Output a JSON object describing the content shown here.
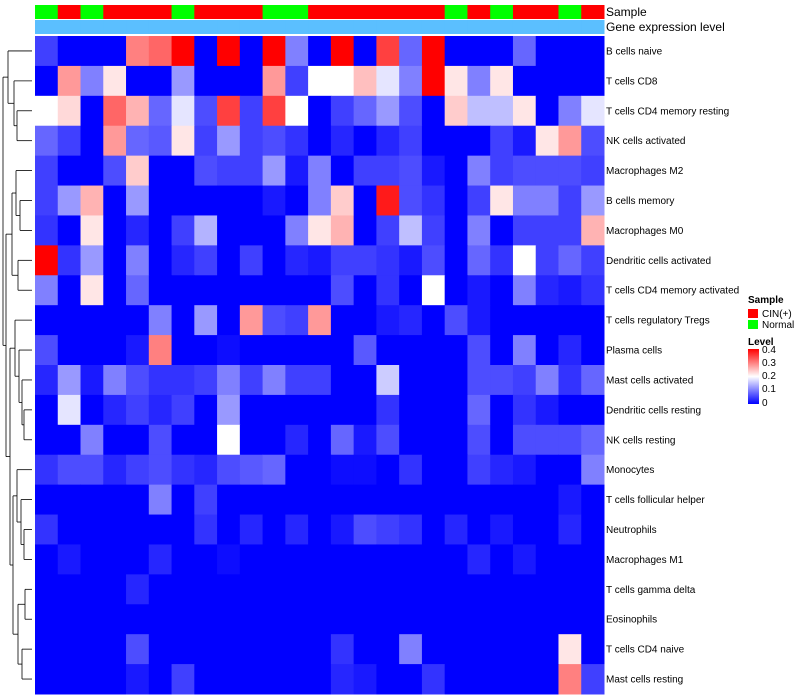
{
  "chart_data": {
    "type": "heatmap",
    "title": "",
    "annotation_titles": {
      "sample": "Sample",
      "level": "Gene expression level"
    },
    "n_columns": 25,
    "sample_groups": [
      "Normal",
      "CIN",
      "Normal",
      "CIN",
      "CIN",
      "CIN",
      "Normal",
      "CIN",
      "CIN",
      "CIN",
      "Normal",
      "Normal",
      "CIN",
      "CIN",
      "CIN",
      "CIN",
      "CIN",
      "CIN",
      "Normal",
      "CIN",
      "Normal",
      "CIN",
      "CIN",
      "Normal",
      "CIN"
    ],
    "level_bar": [
      0.0,
      0.0,
      0.0,
      0.0,
      0.0,
      0.0,
      0.0,
      0.0,
      0.0,
      0.0,
      0.0,
      0.0,
      0.0,
      0.0,
      0.0,
      0.0,
      0.0,
      0.0,
      0.0,
      0.0,
      0.0,
      0.0,
      0.0,
      0.0,
      0.0
    ],
    "rows": [
      "B cells naive",
      "T cells CD8",
      "T cells CD4 memory resting",
      "NK cells activated",
      "Macrophages M2",
      "B cells memory",
      "Macrophages M0",
      "Dendritic cells activated",
      "T cells CD4 memory activated",
      "T cells regulatory  Tregs",
      "Plasma cells",
      "Mast cells activated",
      "Dendritic cells resting",
      "NK cells resting",
      "Monocytes",
      "T cells follicular helper",
      "Neutrophils",
      "Macrophages M1",
      "T cells gamma delta",
      "Eosinophils",
      "T cells CD4 naive",
      "Mast cells resting"
    ],
    "values": [
      [
        0.05,
        0,
        0,
        0,
        0.3,
        0.32,
        0.4,
        0,
        0.4,
        0,
        0.4,
        0.1,
        0,
        0.4,
        0,
        0.35,
        0.08,
        0.4,
        0,
        0,
        0,
        0.08,
        0,
        0,
        0
      ],
      [
        0,
        0.28,
        0.1,
        0.22,
        0,
        0,
        0.12,
        0,
        0,
        0,
        0.28,
        0.05,
        0.2,
        0.2,
        0.25,
        0.18,
        0.1,
        0.4,
        0.22,
        0.1,
        0.22,
        0,
        0,
        0,
        0
      ],
      [
        0.2,
        0.23,
        0,
        0.32,
        0.26,
        0.08,
        0.18,
        0.06,
        0.35,
        0.05,
        0.35,
        0.2,
        0,
        0.05,
        0.08,
        0.12,
        0.06,
        0,
        0.24,
        0.15,
        0.15,
        0.22,
        0,
        0.1,
        0.18
      ],
      [
        0.08,
        0.05,
        0,
        0.28,
        0.08,
        0.07,
        0.22,
        0.05,
        0.12,
        0.05,
        0.06,
        0.04,
        0,
        0.03,
        0,
        0.03,
        0.05,
        0,
        0,
        0,
        0.05,
        0.02,
        0.22,
        0.28,
        0.06
      ],
      [
        0.05,
        0,
        0,
        0.06,
        0.24,
        0,
        0,
        0.06,
        0.05,
        0.05,
        0.12,
        0.02,
        0.1,
        0,
        0.05,
        0.05,
        0.06,
        0.02,
        0,
        0.1,
        0.05,
        0.06,
        0.06,
        0.06,
        0.05
      ],
      [
        0.05,
        0.12,
        0.26,
        0,
        0.12,
        0,
        0,
        0,
        0,
        0,
        0.02,
        0,
        0.1,
        0.24,
        0,
        0.38,
        0.06,
        0.04,
        0,
        0.05,
        0.22,
        0.1,
        0.1,
        0.05,
        0.12
      ],
      [
        0.04,
        0,
        0.22,
        0,
        0.03,
        0,
        0.05,
        0.14,
        0,
        0,
        0,
        0.1,
        0.22,
        0.26,
        0,
        0.05,
        0.15,
        0.05,
        0,
        0.1,
        0,
        0.05,
        0.05,
        0.05,
        0.26
      ],
      [
        0.4,
        0.04,
        0.12,
        0,
        0.1,
        0,
        0.03,
        0.05,
        0,
        0.05,
        0,
        0.03,
        0.02,
        0.05,
        0.05,
        0.04,
        0.02,
        0.06,
        0,
        0.08,
        0.04,
        0.2,
        0.05,
        0.08,
        0.05
      ],
      [
        0.1,
        0,
        0.22,
        0,
        0.08,
        0,
        0,
        0,
        0,
        0,
        0,
        0,
        0,
        0.06,
        0,
        0.04,
        0,
        0.2,
        0,
        0.02,
        0,
        0.1,
        0.03,
        0.02,
        0.04
      ],
      [
        0,
        0,
        0,
        0,
        0,
        0.1,
        0,
        0.12,
        0,
        0.28,
        0.06,
        0.05,
        0.28,
        0,
        0,
        0.02,
        0.03,
        0,
        0.06,
        0.02,
        0,
        0,
        0,
        0,
        0
      ],
      [
        0.06,
        0,
        0,
        0,
        0.02,
        0.3,
        0,
        0,
        0.01,
        0,
        0,
        0,
        0,
        0,
        0.07,
        0,
        0,
        0,
        0,
        0.06,
        0,
        0.1,
        0,
        0.03,
        0
      ],
      [
        0.03,
        0.12,
        0.02,
        0.1,
        0.06,
        0.04,
        0.04,
        0.05,
        0.1,
        0.05,
        0.1,
        0.05,
        0.05,
        0,
        0,
        0.16,
        0,
        0,
        0,
        0.06,
        0.06,
        0.05,
        0.1,
        0.04,
        0.08
      ],
      [
        0,
        0.18,
        0,
        0.03,
        0.05,
        0.03,
        0.05,
        0,
        0.12,
        0,
        0,
        0,
        0,
        0,
        0,
        0.04,
        0,
        0,
        0,
        0.08,
        0,
        0.04,
        0.02,
        0,
        0
      ],
      [
        0,
        0,
        0.1,
        0,
        0,
        0.06,
        0,
        0,
        0.2,
        0,
        0,
        0.03,
        0,
        0.08,
        0.02,
        0.06,
        0,
        0,
        0,
        0.06,
        0,
        0.06,
        0.06,
        0.06,
        0.08
      ],
      [
        0.04,
        0.06,
        0.06,
        0.03,
        0.05,
        0.06,
        0.04,
        0.03,
        0.06,
        0.07,
        0.08,
        0,
        0,
        0.01,
        0.01,
        0,
        0.04,
        0,
        0,
        0.05,
        0.03,
        0.02,
        0,
        0,
        0.1
      ],
      [
        0,
        0,
        0,
        0,
        0,
        0.1,
        0,
        0.05,
        0,
        0,
        0,
        0,
        0,
        0,
        0,
        0,
        0,
        0,
        0,
        0,
        0,
        0,
        0,
        0.02,
        0
      ],
      [
        0.04,
        0,
        0,
        0,
        0,
        0,
        0,
        0.04,
        0,
        0.03,
        0,
        0.03,
        0,
        0.02,
        0.06,
        0.05,
        0.04,
        0,
        0.03,
        0,
        0.02,
        0,
        0,
        0.03,
        0
      ],
      [
        0,
        0.02,
        0,
        0,
        0,
        0.03,
        0,
        0,
        0.01,
        0,
        0,
        0,
        0,
        0,
        0,
        0,
        0,
        0,
        0,
        0.03,
        0,
        0.02,
        0,
        0,
        0
      ],
      [
        0,
        0,
        0,
        0,
        0.03,
        0,
        0,
        0,
        0,
        0,
        0,
        0,
        0,
        0,
        0,
        0,
        0,
        0,
        0,
        0,
        0,
        0,
        0,
        0,
        0
      ],
      [
        0,
        0,
        0,
        0,
        0,
        0,
        0,
        0,
        0,
        0,
        0,
        0,
        0,
        0,
        0,
        0,
        0,
        0,
        0,
        0,
        0,
        0,
        0,
        0,
        0
      ],
      [
        0,
        0,
        0,
        0,
        0.06,
        0,
        0,
        0,
        0,
        0,
        0,
        0,
        0,
        0.04,
        0,
        0,
        0.1,
        0,
        0,
        0,
        0,
        0,
        0,
        0.22,
        0
      ],
      [
        0,
        0,
        0,
        0,
        0.02,
        0,
        0.05,
        0,
        0,
        0,
        0,
        0,
        0,
        0.03,
        0.02,
        0,
        0,
        0.04,
        0,
        0,
        0,
        0,
        0,
        0.3,
        0.05
      ]
    ],
    "color_scale": {
      "min": 0,
      "max": 0.4,
      "low": "#0000ff",
      "mid": "#ffffff",
      "high": "#ff0000",
      "mid_value": 0.2
    },
    "legend": {
      "sample_title": "Sample",
      "sample_items": [
        {
          "label": "CIN(+)",
          "color": "#ff0000"
        },
        {
          "label": "Normal",
          "color": "#00ff00"
        }
      ],
      "level_title": "Level",
      "level_ticks": [
        "0.4",
        "0.3",
        "0.2",
        "0.1",
        "0"
      ]
    },
    "colors": {
      "cin": "#ff0000",
      "normal": "#00ff00",
      "level_bar": "#5bbfff"
    }
  }
}
